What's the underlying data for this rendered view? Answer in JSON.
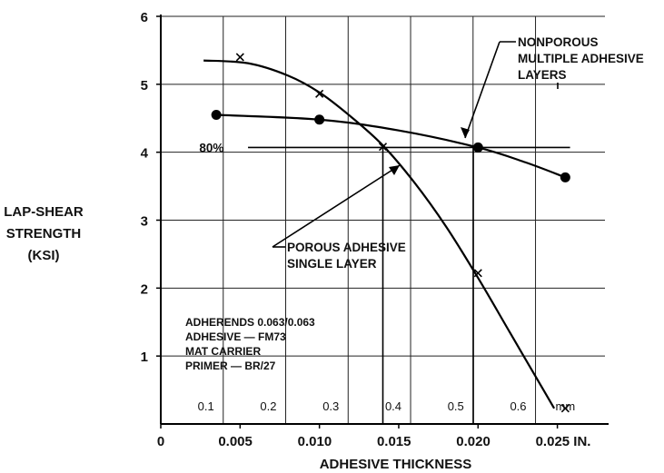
{
  "chart_data": {
    "type": "line",
    "xlabel": "ADHESIVE THICKNESS",
    "ylabel_lines": [
      "LAP-SHEAR",
      "STRENGTH",
      "(KSI)"
    ],
    "xlim": [
      0,
      0.028
    ],
    "ylim": [
      0,
      6
    ],
    "grid": true,
    "x_ticks": [
      {
        "value": 0,
        "label": "0"
      },
      {
        "value": 0.005,
        "label": "0.005"
      },
      {
        "value": 0.01,
        "label": "0.010"
      },
      {
        "value": 0.015,
        "label": "0.015"
      },
      {
        "value": 0.02,
        "label": "0.020"
      },
      {
        "value": 0.025,
        "label": "0.025 IN."
      }
    ],
    "y_ticks": [
      {
        "value": 1,
        "label": "1"
      },
      {
        "value": 2,
        "label": "2"
      },
      {
        "value": 3,
        "label": "3"
      },
      {
        "value": 4,
        "label": "4"
      },
      {
        "value": 5,
        "label": "5"
      },
      {
        "value": 6,
        "label": "6"
      }
    ],
    "mm_ticks": [
      {
        "value": 0.1,
        "label": "0.1"
      },
      {
        "value": 0.2,
        "label": "0.2"
      },
      {
        "value": 0.3,
        "label": "0.3"
      },
      {
        "value": 0.4,
        "label": "0.4"
      },
      {
        "value": 0.5,
        "label": "0.5"
      },
      {
        "value": 0.6,
        "label": "0.6"
      }
    ],
    "mm_unit": "mm",
    "series": [
      {
        "name_lines": [
          "NONPOROUS",
          "MULTIPLE ADHESIVE",
          "LAYERS"
        ],
        "marker": "dot",
        "points": [
          [
            0.0035,
            4.55
          ],
          [
            0.01,
            4.48
          ],
          [
            0.02,
            4.07
          ],
          [
            0.0255,
            3.63
          ]
        ],
        "curve": [
          [
            0.0035,
            4.55
          ],
          [
            0.01,
            4.48
          ],
          [
            0.015,
            4.32
          ],
          [
            0.02,
            4.07
          ],
          [
            0.023,
            3.85
          ],
          [
            0.0255,
            3.63
          ]
        ]
      },
      {
        "name_lines": [
          "POROUS ADHESIVE",
          "SINGLE LAYER"
        ],
        "marker": "x",
        "points": [
          [
            0.005,
            5.4
          ],
          [
            0.01,
            4.86
          ],
          [
            0.014,
            4.08
          ],
          [
            0.02,
            2.22
          ],
          [
            0.0255,
            0.23
          ]
        ],
        "curve": [
          [
            0.0027,
            5.35
          ],
          [
            0.0055,
            5.31
          ],
          [
            0.008,
            5.13
          ],
          [
            0.01,
            4.88
          ],
          [
            0.012,
            4.52
          ],
          [
            0.014,
            4.1
          ],
          [
            0.016,
            3.55
          ],
          [
            0.018,
            2.9
          ],
          [
            0.02,
            2.15
          ],
          [
            0.022,
            1.35
          ],
          [
            0.024,
            0.55
          ],
          [
            0.0248,
            0.23
          ]
        ]
      }
    ],
    "reference_line": {
      "label": "80%",
      "value": 4.07
    },
    "notes": [
      "ADHERENDS 0.063/0.063",
      "ADHESIVE — FM73",
      "MAT CARRIER",
      "PRIMER — BR/27"
    ]
  }
}
